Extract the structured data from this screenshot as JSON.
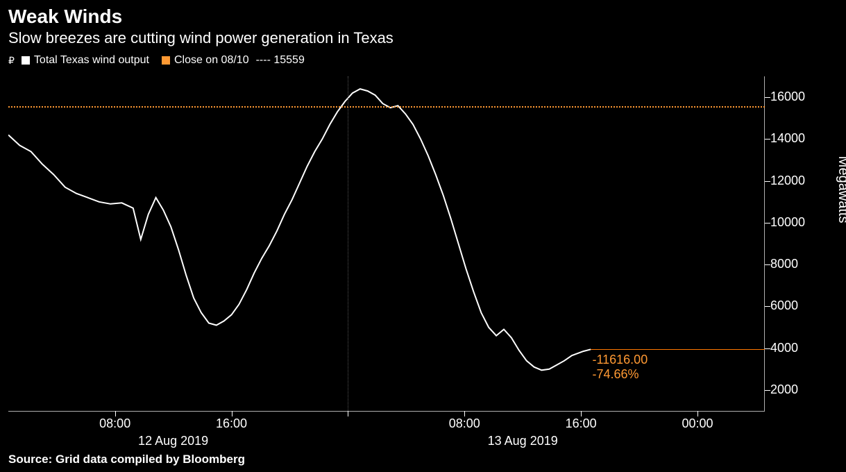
{
  "header": {
    "title": "Weak Winds",
    "subtitle": "Slow breezes are cutting wind power generation in Texas"
  },
  "legend": {
    "currency_symbol": "₽",
    "series1_label": "Total Texas wind output",
    "series2_label": "Close on 08/10",
    "close_value": "---- 15559"
  },
  "chart": {
    "type": "line",
    "background_color": "#000000",
    "line_color": "#ffffff",
    "line_width": 2,
    "reference_color": "#ff9933",
    "grid_color": "#555555",
    "axis_color": "#b0b0b0",
    "text_color": "#ffffff",
    "y_axis": {
      "label": "Megawatts",
      "min": 1000,
      "max": 17000,
      "ticks": [
        2000,
        4000,
        6000,
        8000,
        10000,
        12000,
        14000,
        16000
      ]
    },
    "x_axis": {
      "ticks": [
        {
          "pos": 0.141,
          "label": "08:00"
        },
        {
          "pos": 0.295,
          "label": "16:00"
        },
        {
          "pos": 0.449,
          "label": ""
        },
        {
          "pos": 0.603,
          "label": "08:00"
        },
        {
          "pos": 0.757,
          "label": "16:00"
        },
        {
          "pos": 0.911,
          "label": "00:00"
        }
      ],
      "date_labels": [
        {
          "pos": 0.218,
          "label": "12 Aug 2019"
        },
        {
          "pos": 0.68,
          "label": "13 Aug 2019"
        }
      ],
      "grid_positions": [
        0.449
      ]
    },
    "reference_value": 15559,
    "current_value": 3943,
    "current_line_start_x": 0.77,
    "annotation": {
      "value_text": "-11616.00",
      "percent_text": "-74.66%",
      "x": 0.772,
      "y_value": 3800
    },
    "series": [
      {
        "x": 0.0,
        "y": 14200
      },
      {
        "x": 0.015,
        "y": 13700
      },
      {
        "x": 0.03,
        "y": 13400
      },
      {
        "x": 0.045,
        "y": 12800
      },
      {
        "x": 0.06,
        "y": 12300
      },
      {
        "x": 0.075,
        "y": 11700
      },
      {
        "x": 0.09,
        "y": 11400
      },
      {
        "x": 0.105,
        "y": 11200
      },
      {
        "x": 0.12,
        "y": 11000
      },
      {
        "x": 0.135,
        "y": 10900
      },
      {
        "x": 0.15,
        "y": 10950
      },
      {
        "x": 0.165,
        "y": 10700
      },
      {
        "x": 0.175,
        "y": 9200
      },
      {
        "x": 0.185,
        "y": 10400
      },
      {
        "x": 0.195,
        "y": 11200
      },
      {
        "x": 0.205,
        "y": 10600
      },
      {
        "x": 0.215,
        "y": 9800
      },
      {
        "x": 0.225,
        "y": 8700
      },
      {
        "x": 0.235,
        "y": 7500
      },
      {
        "x": 0.245,
        "y": 6400
      },
      {
        "x": 0.255,
        "y": 5700
      },
      {
        "x": 0.265,
        "y": 5200
      },
      {
        "x": 0.275,
        "y": 5100
      },
      {
        "x": 0.285,
        "y": 5300
      },
      {
        "x": 0.295,
        "y": 5600
      },
      {
        "x": 0.305,
        "y": 6100
      },
      {
        "x": 0.315,
        "y": 6800
      },
      {
        "x": 0.325,
        "y": 7600
      },
      {
        "x": 0.335,
        "y": 8300
      },
      {
        "x": 0.345,
        "y": 8900
      },
      {
        "x": 0.355,
        "y": 9600
      },
      {
        "x": 0.365,
        "y": 10400
      },
      {
        "x": 0.375,
        "y": 11100
      },
      {
        "x": 0.385,
        "y": 11900
      },
      {
        "x": 0.395,
        "y": 12700
      },
      {
        "x": 0.405,
        "y": 13400
      },
      {
        "x": 0.415,
        "y": 14000
      },
      {
        "x": 0.425,
        "y": 14700
      },
      {
        "x": 0.435,
        "y": 15300
      },
      {
        "x": 0.445,
        "y": 15800
      },
      {
        "x": 0.455,
        "y": 16200
      },
      {
        "x": 0.465,
        "y": 16400
      },
      {
        "x": 0.475,
        "y": 16300
      },
      {
        "x": 0.485,
        "y": 16100
      },
      {
        "x": 0.495,
        "y": 15700
      },
      {
        "x": 0.505,
        "y": 15500
      },
      {
        "x": 0.515,
        "y": 15600
      },
      {
        "x": 0.525,
        "y": 15200
      },
      {
        "x": 0.535,
        "y": 14700
      },
      {
        "x": 0.545,
        "y": 14000
      },
      {
        "x": 0.555,
        "y": 13200
      },
      {
        "x": 0.565,
        "y": 12300
      },
      {
        "x": 0.575,
        "y": 11300
      },
      {
        "x": 0.585,
        "y": 10200
      },
      {
        "x": 0.595,
        "y": 9000
      },
      {
        "x": 0.605,
        "y": 7800
      },
      {
        "x": 0.615,
        "y": 6700
      },
      {
        "x": 0.625,
        "y": 5700
      },
      {
        "x": 0.635,
        "y": 5000
      },
      {
        "x": 0.645,
        "y": 4600
      },
      {
        "x": 0.655,
        "y": 4900
      },
      {
        "x": 0.665,
        "y": 4500
      },
      {
        "x": 0.675,
        "y": 3900
      },
      {
        "x": 0.685,
        "y": 3400
      },
      {
        "x": 0.695,
        "y": 3100
      },
      {
        "x": 0.705,
        "y": 2950
      },
      {
        "x": 0.715,
        "y": 3000
      },
      {
        "x": 0.725,
        "y": 3200
      },
      {
        "x": 0.735,
        "y": 3400
      },
      {
        "x": 0.745,
        "y": 3650
      },
      {
        "x": 0.76,
        "y": 3850
      },
      {
        "x": 0.77,
        "y": 3943
      }
    ]
  },
  "source": "Source: Grid data compiled by Bloomberg"
}
